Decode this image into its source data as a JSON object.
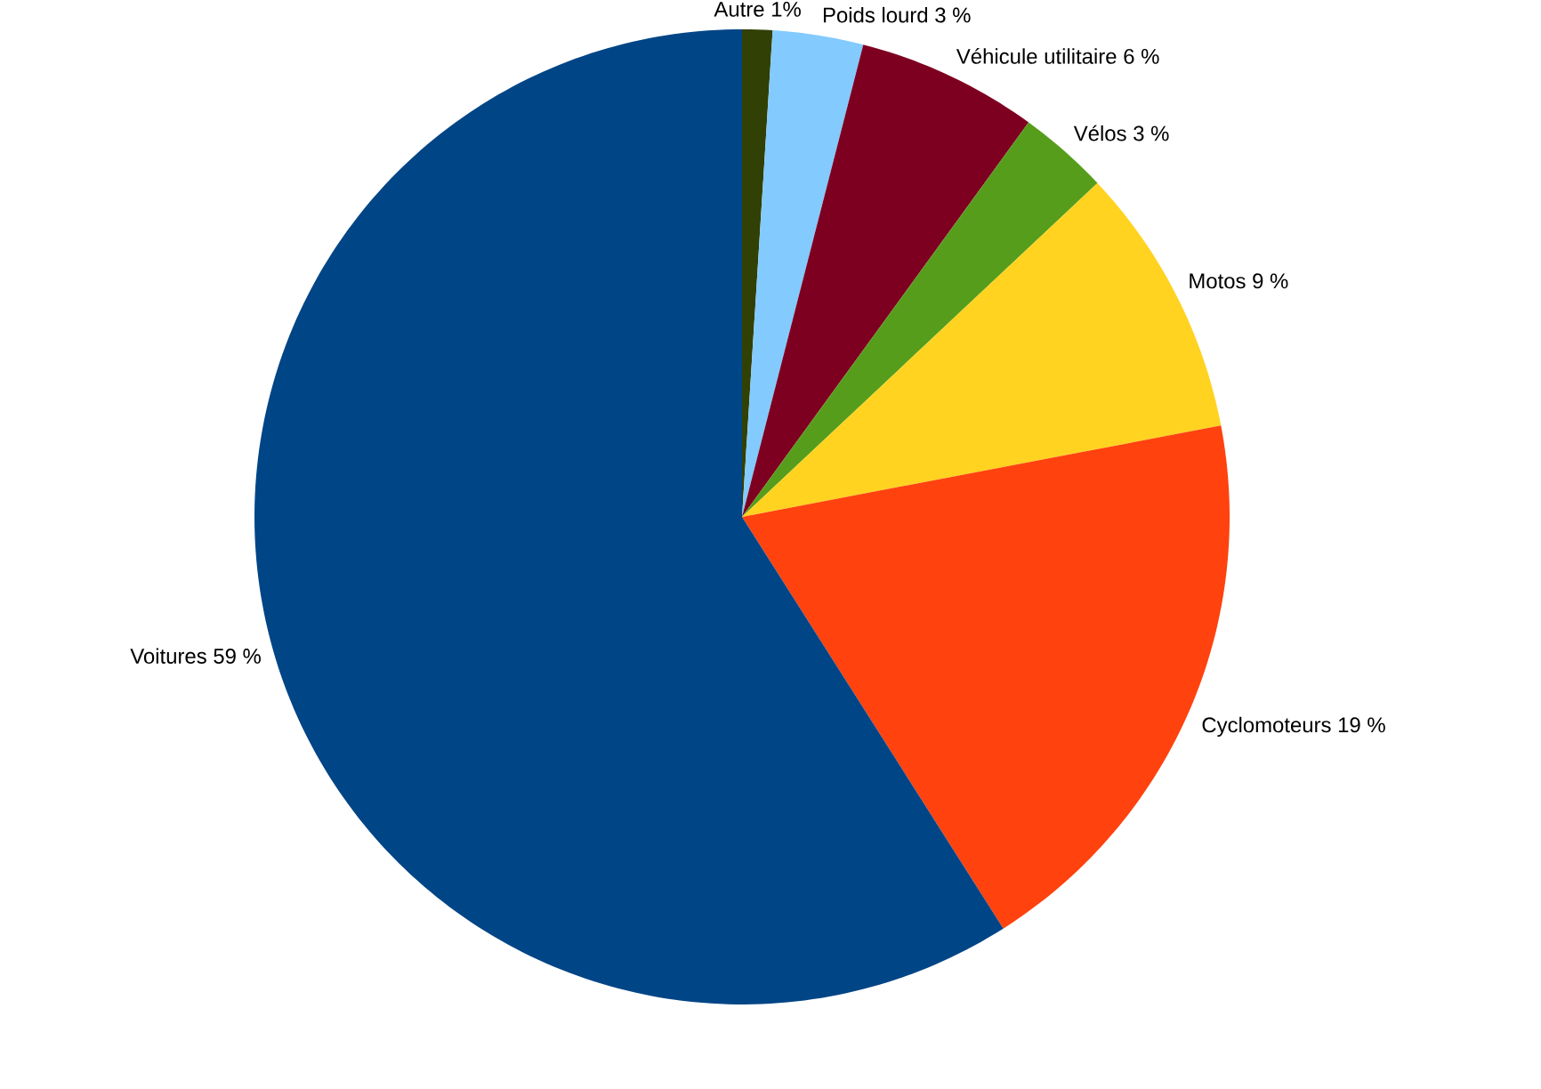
{
  "chart_data": {
    "type": "pie",
    "categories": [
      "Autre",
      "Poids lourd",
      "Véhicule utilitaire",
      "Vélos",
      "Motos",
      "Cyclomoteurs",
      "Voitures"
    ],
    "values": [
      1,
      3,
      6,
      3,
      9,
      19,
      59
    ],
    "value_labels": [
      "1%",
      "3 %",
      "6 %",
      "3 %",
      "9 %",
      "19 %",
      "59 %"
    ],
    "colors": [
      "#314004",
      "#83caff",
      "#7e0021",
      "#579d1c",
      "#ffd320",
      "#ff420e",
      "#004586"
    ]
  }
}
